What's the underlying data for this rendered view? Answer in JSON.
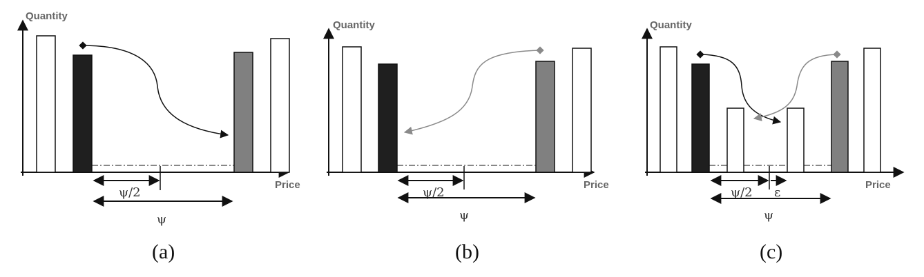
{
  "colors": {
    "black_bar": "#1f1f1f",
    "gray_bar": "#808080",
    "white_bar": "#ffffff",
    "outline": "#111111",
    "gray_arrow": "#8a8a8a"
  },
  "panels": [
    {
      "caption": "(a)",
      "y_axis_label": "Quantity",
      "x_axis_label": "Price",
      "half_distance_label": "ψ/2",
      "full_distance_label": "ψ"
    },
    {
      "caption": "(b)",
      "y_axis_label": "Quantity",
      "x_axis_label": "Price",
      "half_distance_label": "ψ/2",
      "full_distance_label": "ψ"
    },
    {
      "caption": "(c)",
      "y_axis_label": "Quantity",
      "x_axis_label": "Price",
      "half_distance_label": "ψ/2",
      "full_distance_label": "ψ",
      "epsilon_label": "ε"
    }
  ]
}
